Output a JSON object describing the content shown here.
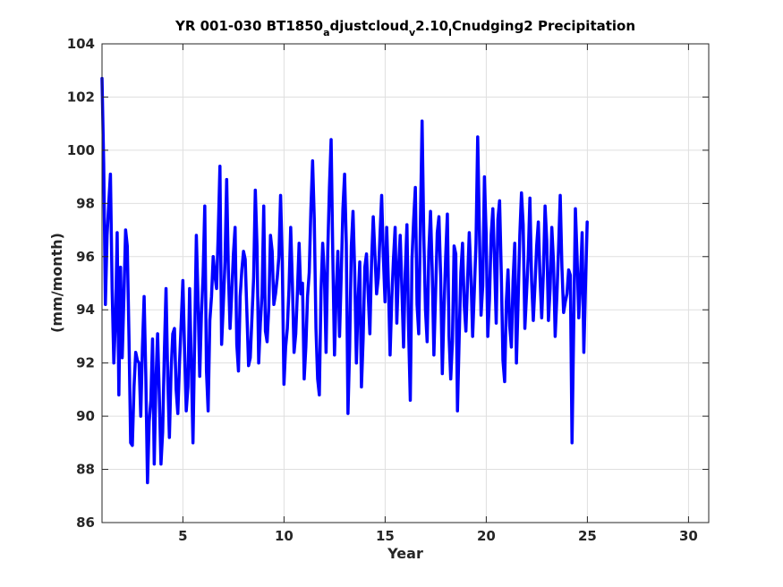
{
  "title": {
    "main": "YR 001-030 BT1850",
    "sub_a": "a",
    "seg1": "djustcloud",
    "sub_v": "v",
    "seg2": "2.10",
    "sub_l": "l",
    "seg3": "Cnudging2 Precipitation"
  },
  "chart_data": {
    "type": "line",
    "title": "YR 001-030 BT1850_adjustcloud_v2.10_lCnudging2 Precipitation",
    "xlabel": "Year",
    "ylabel": "(mm/month)",
    "xlim": [
      1,
      31
    ],
    "ylim": [
      86,
      104
    ],
    "xticks": [
      5,
      10,
      15,
      20,
      25,
      30
    ],
    "yticks": [
      86,
      88,
      90,
      92,
      94,
      96,
      98,
      100,
      102,
      104
    ],
    "grid": true,
    "legend": "none",
    "line_color": "#0000FF",
    "x_start": 1.0,
    "x_step": 0.0833,
    "series": [
      {
        "values": [
          102.7,
          99.5,
          94.2,
          96.8,
          98.0,
          99.1,
          94.8,
          92.0,
          93.6,
          96.9,
          90.8,
          95.6,
          92.2,
          94.5,
          97.0,
          96.4,
          93.0,
          89.0,
          88.9,
          91.1,
          92.4,
          92.1,
          92.0,
          90.0,
          92.6,
          94.5,
          91.5,
          87.5,
          89.8,
          90.6,
          92.9,
          88.2,
          91.3,
          93.1,
          90.8,
          88.2,
          89.4,
          92.4,
          94.8,
          91.5,
          89.2,
          91.7,
          93.1,
          93.3,
          91.0,
          90.1,
          92.0,
          93.5,
          95.1,
          92.5,
          90.2,
          91.1,
          94.8,
          92.0,
          89.0,
          92.9,
          96.8,
          94.4,
          91.5,
          93.8,
          95.3,
          97.9,
          91.7,
          90.2,
          93.6,
          94.5,
          96.0,
          95.3,
          94.8,
          96.9,
          99.4,
          92.7,
          94.2,
          95.8,
          98.9,
          95.5,
          93.3,
          94.6,
          96.1,
          97.1,
          92.7,
          91.7,
          94.5,
          95.5,
          96.2,
          95.9,
          93.9,
          91.9,
          92.2,
          93.7,
          95.2,
          98.5,
          96.4,
          92.0,
          93.5,
          94.6,
          97.9,
          93.2,
          92.8,
          94.1,
          96.8,
          96.2,
          94.2,
          94.6,
          95.2,
          96.0,
          98.3,
          95.8,
          91.2,
          92.6,
          93.3,
          94.8,
          97.1,
          95.0,
          92.4,
          93.1,
          94.7,
          96.5,
          94.6,
          95.0,
          91.4,
          92.6,
          94.5,
          95.4,
          97.8,
          99.6,
          97.4,
          93.3,
          91.4,
          90.8,
          94.7,
          96.5,
          95.3,
          92.4,
          96.2,
          98.6,
          100.4,
          96.0,
          92.3,
          94.6,
          96.2,
          93.0,
          95.3,
          97.8,
          99.1,
          96.5,
          90.1,
          92.6,
          96.4,
          97.7,
          95.4,
          92.0,
          94.3,
          95.8,
          91.1,
          92.9,
          95.6,
          96.1,
          94.6,
          93.1,
          95.8,
          97.5,
          96.1,
          94.6,
          95.2,
          96.8,
          98.3,
          96.0,
          94.3,
          97.1,
          95.0,
          92.3,
          94.4,
          95.9,
          97.1,
          93.5,
          95.5,
          96.8,
          94.8,
          92.6,
          95.4,
          97.2,
          93.2,
          90.6,
          95.9,
          97.4,
          98.6,
          94.2,
          93.1,
          97.3,
          101.1,
          96.8,
          94.0,
          92.8,
          96.2,
          97.7,
          95.5,
          92.3,
          94.6,
          96.9,
          97.5,
          95.3,
          91.6,
          94.0,
          96.0,
          97.6,
          93.0,
          91.4,
          92.8,
          96.4,
          96.1,
          90.2,
          92.9,
          95.4,
          96.5,
          94.2,
          93.2,
          95.1,
          96.9,
          95.3,
          93.0,
          94.7,
          96.5,
          100.5,
          97.0,
          93.8,
          94.9,
          99.0,
          96.9,
          93.0,
          94.4,
          96.8,
          97.8,
          95.8,
          93.5,
          97.4,
          98.1,
          95.4,
          92.1,
          91.3,
          94.3,
          95.5,
          93.4,
          92.6,
          95.1,
          96.5,
          92.0,
          94.3,
          96.8,
          98.4,
          97.2,
          93.3,
          94.6,
          96.0,
          98.2,
          95.1,
          93.6,
          94.9,
          96.4,
          97.3,
          95.2,
          93.7,
          95.4,
          97.9,
          96.6,
          93.6,
          94.8,
          97.1,
          95.8,
          93.0,
          94.5,
          96.3,
          98.3,
          95.6,
          93.9,
          94.3,
          94.6,
          95.5,
          95.3,
          89.0,
          93.4,
          97.8,
          96.0,
          93.7,
          95.1,
          96.9,
          92.4,
          94.9,
          97.3
        ]
      }
    ]
  }
}
